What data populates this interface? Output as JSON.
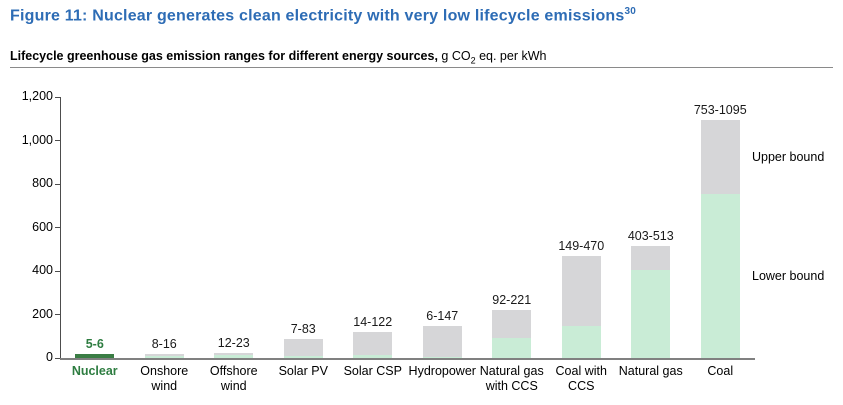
{
  "title": {
    "text": "Figure 11: Nuclear generates clean electricity with very low lifecycle emissions",
    "superscript": "30"
  },
  "subtitle": {
    "bold": "Lifecycle greenhouse gas emission ranges for different energy sources,",
    "unit_prefix": " g CO",
    "unit_subscript": "2",
    "unit_suffix": " eq. per kWh"
  },
  "chart_data": {
    "type": "bar",
    "stacked": true,
    "title": "Lifecycle greenhouse gas emission ranges for different energy sources",
    "unit": "g CO2 eq. per kWh",
    "categories": [
      "Nuclear",
      "Onshore wind",
      "Offshore wind",
      "Solar PV",
      "Solar CSP",
      "Hydropower",
      "Natural gas with CCS",
      "Coal with CCS",
      "Natural gas",
      "Coal"
    ],
    "series": [
      {
        "name": "Lower bound",
        "values": [
          5,
          8,
          12,
          7,
          14,
          6,
          92,
          149,
          403,
          753
        ]
      },
      {
        "name": "Upper bound",
        "values": [
          6,
          16,
          23,
          83,
          122,
          147,
          221,
          470,
          513,
          1095
        ]
      }
    ],
    "bar_labels": [
      "5-6",
      "8-16",
      "12-23",
      "7-83",
      "14-122",
      "6-147",
      "92-221",
      "149-470",
      "403-513",
      "753-1095"
    ],
    "highlight_category": "Nuclear",
    "ylim": [
      0,
      1200
    ],
    "ytick_step": 200,
    "ytick_labels": [
      "0",
      "200",
      "400",
      "600",
      "800",
      "1,000",
      "1,200"
    ],
    "grid": false,
    "legend_position": "right-annotations",
    "annotations": {
      "upper": "Upper bound",
      "lower": "Lower bound"
    },
    "colors": {
      "title_blue": "#2d6cb5",
      "lower_bound_fill": "#c9ecd6",
      "upper_bound_fill": "#d6d6d8",
      "highlight_fill": "#3a7d44",
      "highlight_text": "#2e7d41",
      "axis": "#4d4d4d",
      "baseline": "#808080"
    }
  }
}
